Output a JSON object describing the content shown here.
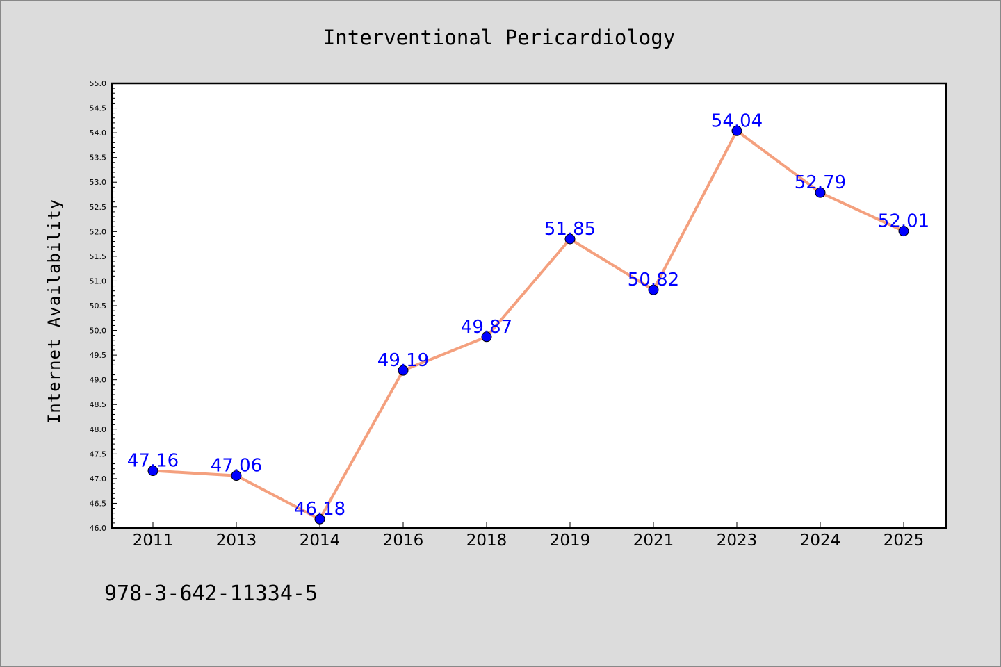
{
  "chart_data": {
    "type": "line",
    "title": "Interventional Pericardiology",
    "ylabel": "Internet Availability",
    "xlabel": "",
    "categories": [
      "2011",
      "2013",
      "2014",
      "2016",
      "2018",
      "2019",
      "2021",
      "2023",
      "2024",
      "2025"
    ],
    "series": [
      {
        "values": [
          47.16,
          47.06,
          46.18,
          49.19,
          49.87,
          51.85,
          50.82,
          54.04,
          52.79,
          52.01
        ],
        "data_labels": [
          "47.16",
          "47.06",
          "46.18",
          "49.19",
          "49.87",
          "51.85",
          "50.82",
          "54.04",
          "52.79",
          "52.01"
        ]
      }
    ],
    "ylim": [
      46.0,
      55.0
    ],
    "yticks": [
      "46.0",
      "46.5",
      "47.0",
      "47.5",
      "48.0",
      "48.5",
      "49.0",
      "49.5",
      "50.0",
      "50.5",
      "51.0",
      "51.5",
      "52.0",
      "52.5",
      "53.0",
      "53.5",
      "54.0",
      "54.5",
      "55.0"
    ],
    "grid": false,
    "line_color": "#f4a07e",
    "marker_color": "#0000ff",
    "label_color": "#0000ff",
    "background_color": "#dcdcdc",
    "plot_background": "#ffffff"
  },
  "footer": {
    "isbn": "978-3-642-11334-5"
  }
}
